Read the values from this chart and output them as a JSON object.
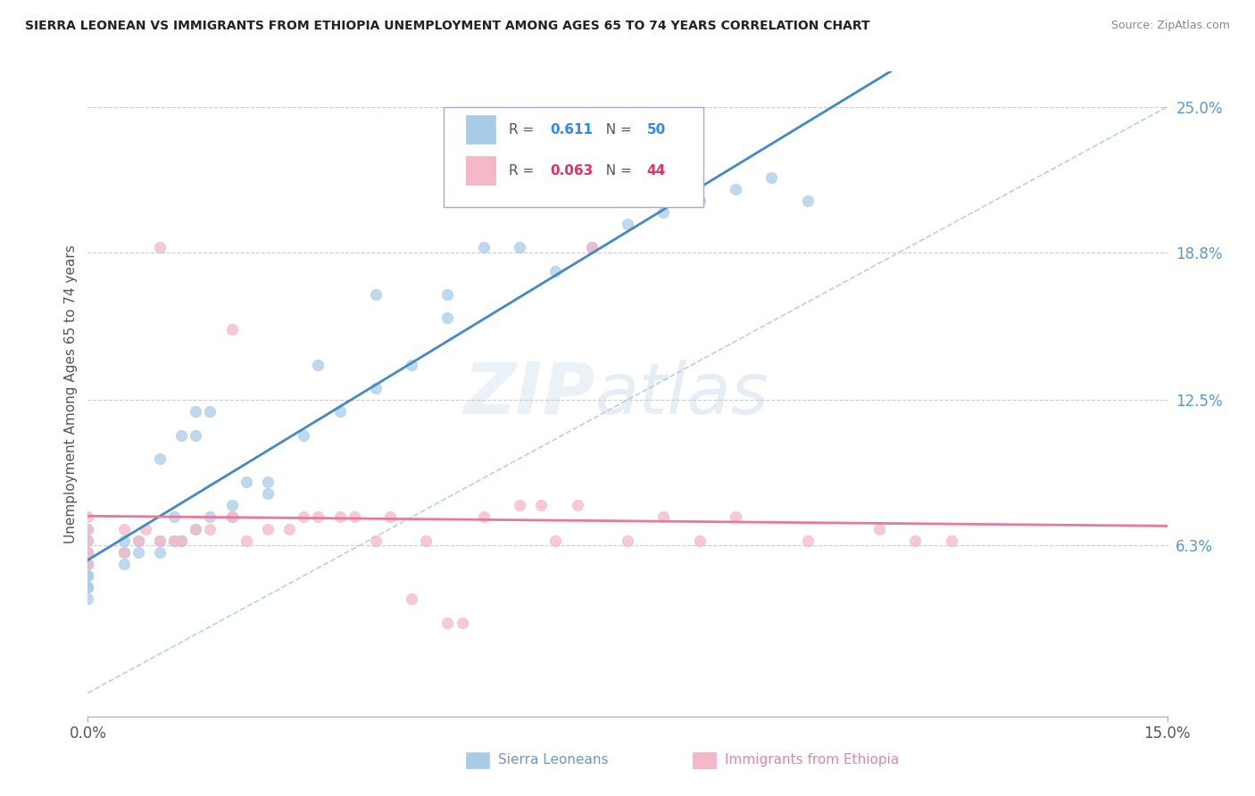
{
  "title": "SIERRA LEONEAN VS IMMIGRANTS FROM ETHIOPIA UNEMPLOYMENT AMONG AGES 65 TO 74 YEARS CORRELATION CHART",
  "source": "Source: ZipAtlas.com",
  "ylabel": "Unemployment Among Ages 65 to 74 years",
  "xlim": [
    0.0,
    0.15
  ],
  "ylim": [
    -0.01,
    0.265
  ],
  "xticks": [
    0.0,
    0.15
  ],
  "xticklabels": [
    "0.0%",
    "15.0%"
  ],
  "yticks_right": [
    0.063,
    0.125,
    0.188,
    0.25
  ],
  "yticklabels_right": [
    "6.3%",
    "12.5%",
    "18.8%",
    "25.0%"
  ],
  "hlines": [
    0.063,
    0.125,
    0.188,
    0.25
  ],
  "blue_R": 0.611,
  "blue_N": 50,
  "pink_R": 0.063,
  "pink_N": 44,
  "blue_color": "#a8cce8",
  "pink_color": "#f4b8c8",
  "blue_line_color": "#4488cc",
  "pink_line_color": "#ee7799",
  "diag_line_color": "#b8d0e8",
  "legend_label_blue": "Sierra Leoneans",
  "legend_label_pink": "Immigrants from Ethiopia",
  "watermark_zip": "ZIP",
  "watermark_atlas": "atlas",
  "title_fontsize": 11,
  "blue_scatter_x": [
    0.0,
    0.0,
    0.0,
    0.0,
    0.0,
    0.0,
    0.0,
    0.0,
    0.0,
    0.0,
    0.005,
    0.005,
    0.005,
    0.007,
    0.007,
    0.01,
    0.01,
    0.01,
    0.012,
    0.012,
    0.013,
    0.013,
    0.015,
    0.015,
    0.015,
    0.017,
    0.017,
    0.02,
    0.02,
    0.022,
    0.025,
    0.025,
    0.03,
    0.032,
    0.035,
    0.04,
    0.04,
    0.045,
    0.05,
    0.05,
    0.055,
    0.06,
    0.065,
    0.07,
    0.075,
    0.08,
    0.085,
    0.09,
    0.095,
    0.1
  ],
  "blue_scatter_y": [
    0.04,
    0.045,
    0.05,
    0.055,
    0.06,
    0.065,
    0.07,
    0.055,
    0.05,
    0.045,
    0.055,
    0.06,
    0.065,
    0.06,
    0.065,
    0.06,
    0.065,
    0.1,
    0.065,
    0.075,
    0.065,
    0.11,
    0.07,
    0.11,
    0.12,
    0.075,
    0.12,
    0.075,
    0.08,
    0.09,
    0.085,
    0.09,
    0.11,
    0.14,
    0.12,
    0.13,
    0.17,
    0.14,
    0.16,
    0.17,
    0.19,
    0.19,
    0.18,
    0.19,
    0.2,
    0.205,
    0.21,
    0.215,
    0.22,
    0.21
  ],
  "pink_scatter_x": [
    0.0,
    0.0,
    0.0,
    0.0,
    0.0,
    0.005,
    0.005,
    0.007,
    0.008,
    0.01,
    0.01,
    0.012,
    0.013,
    0.015,
    0.017,
    0.02,
    0.02,
    0.022,
    0.025,
    0.028,
    0.03,
    0.032,
    0.035,
    0.037,
    0.04,
    0.042,
    0.045,
    0.047,
    0.05,
    0.052,
    0.055,
    0.06,
    0.063,
    0.065,
    0.068,
    0.07,
    0.075,
    0.08,
    0.085,
    0.09,
    0.1,
    0.11,
    0.115,
    0.12
  ],
  "pink_scatter_y": [
    0.055,
    0.06,
    0.065,
    0.07,
    0.075,
    0.06,
    0.07,
    0.065,
    0.07,
    0.065,
    0.19,
    0.065,
    0.065,
    0.07,
    0.07,
    0.075,
    0.155,
    0.065,
    0.07,
    0.07,
    0.075,
    0.075,
    0.075,
    0.075,
    0.065,
    0.075,
    0.04,
    0.065,
    0.03,
    0.03,
    0.075,
    0.08,
    0.08,
    0.065,
    0.08,
    0.19,
    0.065,
    0.075,
    0.065,
    0.075,
    0.065,
    0.07,
    0.065,
    0.065
  ]
}
